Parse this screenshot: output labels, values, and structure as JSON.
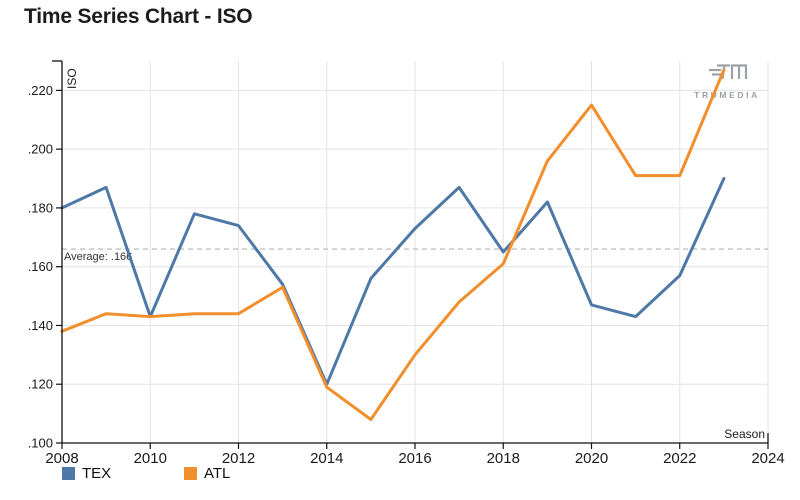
{
  "title": "Time Series Chart - ISO",
  "watermark": {
    "brand": "TRUMEDIA"
  },
  "chart_data": {
    "type": "line",
    "title": "Time Series Chart - ISO",
    "xlabel": "Season",
    "ylabel": "ISO",
    "x": [
      2008,
      2009,
      2010,
      2011,
      2012,
      2013,
      2014,
      2015,
      2016,
      2017,
      2018,
      2019,
      2020,
      2021,
      2022,
      2023
    ],
    "series": [
      {
        "name": "TEX",
        "color": "#4e79a7",
        "values": [
          0.18,
          0.187,
          0.143,
          0.178,
          0.174,
          0.154,
          0.12,
          0.156,
          0.173,
          0.187,
          0.165,
          0.182,
          0.147,
          0.143,
          0.157,
          0.19
        ]
      },
      {
        "name": "ATL",
        "color": "#f28e2b",
        "values": [
          0.138,
          0.144,
          0.143,
          0.144,
          0.144,
          0.153,
          0.119,
          0.108,
          0.13,
          0.148,
          0.161,
          0.196,
          0.215,
          0.191,
          0.191,
          0.227
        ]
      }
    ],
    "average_line": {
      "value": 0.166,
      "label": "Average: .166"
    },
    "x_ticks": [
      2008,
      2010,
      2012,
      2014,
      2016,
      2018,
      2020,
      2022,
      2024
    ],
    "y_ticks": [
      0.1,
      0.12,
      0.14,
      0.16,
      0.18,
      0.2,
      0.22
    ],
    "xlim": [
      2008,
      2024
    ],
    "ylim": [
      0.1,
      0.23
    ],
    "grid": true,
    "legend_position": "bottom-left",
    "colors": {
      "gridline": "#e3e3e3",
      "axis": "#111111",
      "average": "#b3b3b3",
      "watermark": "#9ba1a5"
    }
  }
}
